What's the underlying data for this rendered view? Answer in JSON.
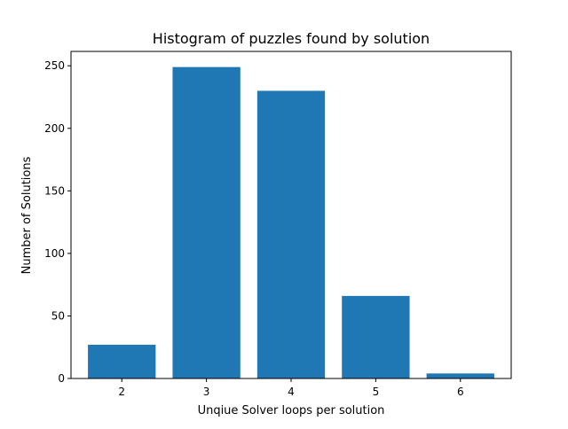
{
  "chart_data": {
    "type": "bar",
    "title": "Histogram of puzzles found by solution",
    "xlabel": "Unqiue Solver loops per solution",
    "ylabel": "Number of Solutions",
    "categories": [
      "2",
      "3",
      "4",
      "5",
      "6"
    ],
    "x": [
      2,
      3,
      4,
      5,
      6
    ],
    "values": [
      27,
      249,
      230,
      66,
      4
    ],
    "xlim": [
      1.4,
      6.6
    ],
    "ylim": [
      0,
      261.5
    ],
    "yticks": [
      0,
      50,
      100,
      150,
      200,
      250
    ],
    "xticks": [
      2,
      3,
      4,
      5,
      6
    ],
    "bar_color": "#1f77b4",
    "grid": false,
    "legend": "none"
  }
}
